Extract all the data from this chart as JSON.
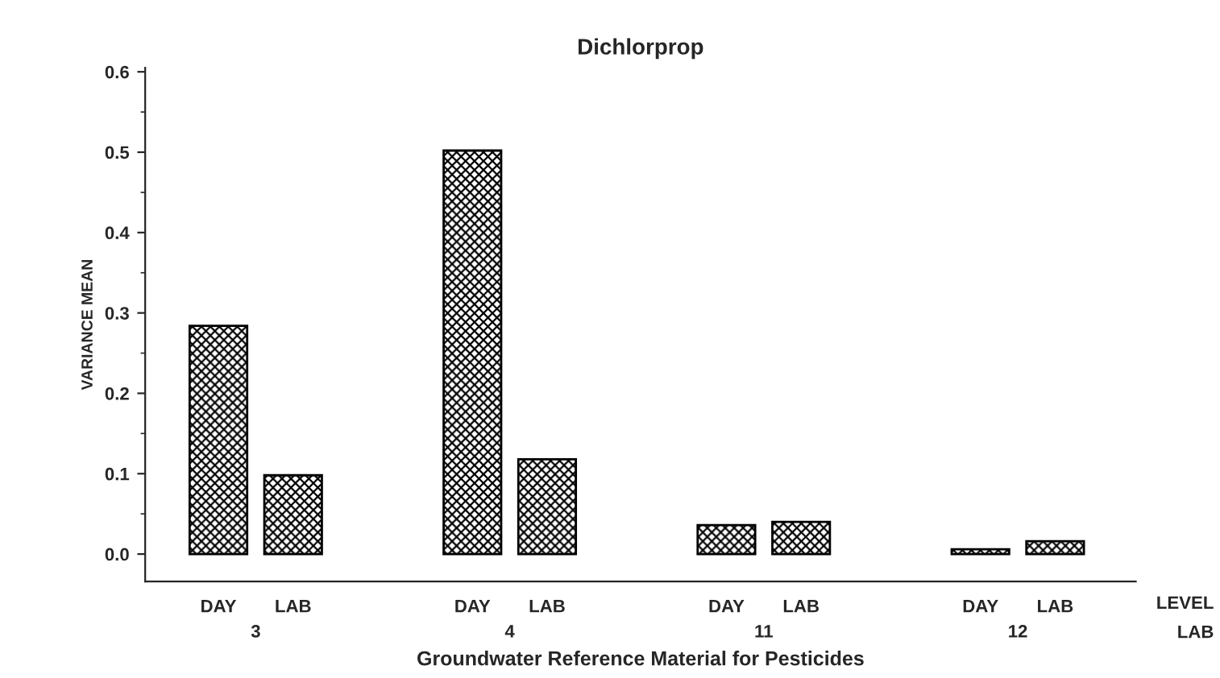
{
  "chart_data": {
    "type": "bar",
    "title": "Dichlorprop",
    "xlabel": "Groundwater Reference Material for Pesticides",
    "ylabel": "VARIANCE MEAN",
    "categories": [
      "DAY",
      "LAB",
      "DAY",
      "LAB",
      "DAY",
      "LAB",
      "DAY",
      "LAB"
    ],
    "values": [
      0.284,
      0.098,
      0.502,
      0.118,
      0.036,
      0.04,
      0.006,
      0.016
    ],
    "color": "#000000",
    "annotations": [
      "3",
      "4",
      "11",
      "12",
      "LEVEL",
      "LAB"
    ],
    "ylim": [
      -0.034,
      0.605
    ],
    "yticks": [
      {
        "value": 0.0,
        "label": "0.0"
      },
      0.1,
      0.2,
      0.3,
      0.4,
      0.5,
      0.6
    ],
    "grid": false,
    "legend": false
  }
}
